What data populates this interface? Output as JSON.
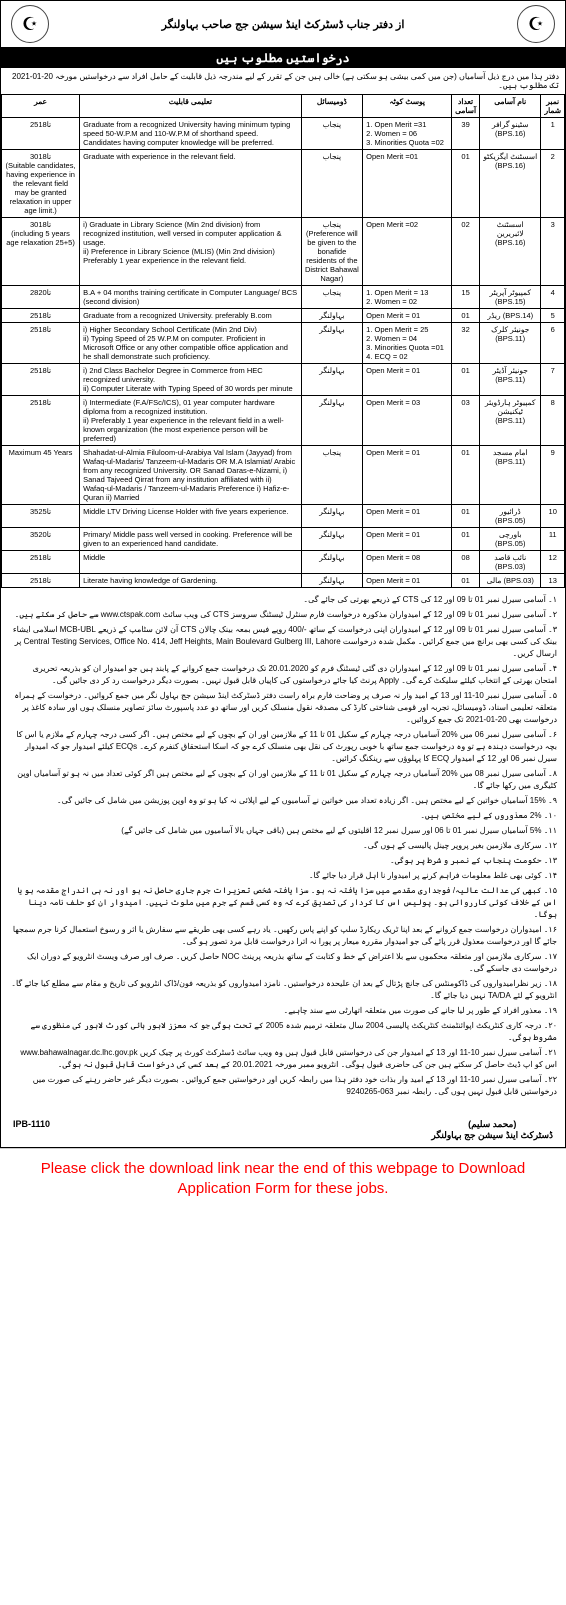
{
  "header": {
    "title_line": "از دفتر جناب ڈسٹرکٹ اینڈ سیشن جج صاحب بہاولنگر",
    "banner": "درخواستیں مطلوب ہیں",
    "intro": "دفتر ہذا میں درج ذیل آسامیاں (جن میں کمی بیشی ہو سکتی ہے) خالی ہیں جن کے تقرر کے لیے مندرجہ ذیل قابلیت کے حامل افراد سے درخواستیں مورخہ 20-01-2021 تک مطلوب ہیں۔"
  },
  "columns": {
    "sr": "نمبر شمار",
    "post": "نام آسامی",
    "qty": "تعداد آسامی",
    "quota": "پوسٹ کوٹہ",
    "domicile": "ڈومیسائل",
    "qualification": "تعلیمی قابلیت",
    "age": "عمر"
  },
  "rows": [
    {
      "sr": "1",
      "post": "سٹینو گرافر\n(BPS.16)",
      "qty": "39",
      "quota": "1. Open Merit =31\n2. Women = 06\n3. Minorities Quota =02",
      "domicile": "پنجاب",
      "qual": "Graduate from a recognized University having minimum typing speed 50-W.P.M and 110-W.P.M of shorthand speed. Candidates having computer knowledge will be preferred.",
      "age": "25تا18"
    },
    {
      "sr": "2",
      "post": "اسسٹنٹ ایگزیکٹو\n(BPS.16)",
      "qty": "01",
      "quota": "Open Merit =01",
      "domicile": "پنجاب",
      "qual": "Graduate with experience in the relevant field.",
      "age": "30تا18\n(Suitable candidates, having experience in the relevant field may be granted relaxation in upper age limit.)"
    },
    {
      "sr": "3",
      "post": "اسسٹنٹ لائبریرین\n(BPS.16)",
      "qty": "02",
      "quota": "Open Merit =02",
      "domicile": "پنجاب\n(Preference will be given to the bonafide residents of the District Bahawal Nagar)",
      "qual": "i) Graduate in Library Science (Min 2nd division) from recognized institution, well versed in computer application & usage.\nii) Preference in Library Science (MLIS) (Min 2nd division) Preferably 1 year experience in the relevant field.",
      "age": "30تا18\n(including 5 years age relaxation 25+5)"
    },
    {
      "sr": "4",
      "post": "کمپیوٹر آپریٹر\n(BPS.15)",
      "qty": "15",
      "quota": "1. Open Merit = 13\n2. Women = 02",
      "domicile": "پنجاب",
      "qual": "B.A + 04 months training certificate in Computer Language/ BCS (second division)",
      "age": "28تا20"
    },
    {
      "sr": "5",
      "post": "ریڈر (BPS.14)",
      "qty": "01",
      "quota": "Open Merit = 01",
      "domicile": "بہاولنگر",
      "qual": "Graduate from a recognized University. preferably B.com",
      "age": "25تا18"
    },
    {
      "sr": "6",
      "post": "جونیئر کلرک\n(BPS.11)",
      "qty": "32",
      "quota": "1. Open Merit = 25\n2. Women = 04\n3. Minorities Quota =01\n4. ECQ = 02",
      "domicile": "بہاولنگر",
      "qual": "i) Higher Secondary School Certificate (Min 2nd Div)\nii) Typing Speed of 25 W.P.M on computer. Proficient in Microsoft Office or any other compatible office application and he shall demonstrate such proficiency.",
      "age": "25تا18"
    },
    {
      "sr": "7",
      "post": "جونیئر آڈیٹر\n(BPS.11)",
      "qty": "01",
      "quota": "Open Merit = 01",
      "domicile": "بہاولنگر",
      "qual": "i) 2nd Class Bachelor Degree in Commerce from HEC recognized university.\nii) Computer Literate with Typing Speed of 30 words per minute",
      "age": "25تا18"
    },
    {
      "sr": "8",
      "post": "کمپیوٹر ہارڈویئر ٹیکنیشن\n(BPS.11)",
      "qty": "03",
      "quota": "Open Merit = 03",
      "domicile": "بہاولنگر",
      "qual": "i) Intermediate (F.A/FSc/ICS), 01 year computer hardware diploma from a recognized institution.\nii) Preferably 1 year experience in the relevant field in a well-known organization (the most experience person will be preferred)",
      "age": "25تا18"
    },
    {
      "sr": "9",
      "post": "امام مسجد\n(BPS.11)",
      "qty": "01",
      "quota": "Open Merit = 01",
      "domicile": "پنجاب",
      "qual": "Shahadat-ul-Almia Filuloom-ul-Arabiya Val Islam (Jayyad) from Wafaq-ul-Madaris/ Tanzeem-ul-Madaris OR M.A Islamiat/ Arabic from any recognized University. OR Sanad Daras-e-Nizami, i) Sanad Tajveed Qirrat from any institution affiliated with ii) Wafaq-ul-Madaris / Tanzeem-ul-Madaris Preference i) Hafiz-e-Quran ii) Married",
      "age": "Maximum 45 Years"
    },
    {
      "sr": "10",
      "post": "ڈرائیور\n(BPS.05)",
      "qty": "01",
      "quota": "Open Merit = 01",
      "domicile": "بہاولنگر",
      "qual": "Middle LTV Driving License Holder with five years experience.",
      "age": "35تا25"
    },
    {
      "sr": "11",
      "post": "باورچی\n(BPS.05)",
      "qty": "01",
      "quota": "Open Merit = 01",
      "domicile": "بہاولنگر",
      "qual": "Primary/ Middle pass well versed in cooking. Preference will be given to an experienced hand candidate.",
      "age": "35تا20"
    },
    {
      "sr": "12",
      "post": "نائب قاصد\n(BPS.03)",
      "qty": "08",
      "quota": "Open Merit = 08",
      "domicile": "بہاولنگر",
      "qual": "Middle",
      "age": "25تا18"
    },
    {
      "sr": "13",
      "post": "مالی (BPS.03)",
      "qty": "01",
      "quota": "Open Merit = 01",
      "domicile": "بہاولنگر",
      "qual": "Literate having knowledge of Gardening.",
      "age": "25تا18"
    }
  ],
  "notes": [
    "۱۔ آسامی سیرل نمبر 01 تا 09 اور 12 کی CTS کے ذریعے بھرتی کی جائے گی۔",
    "۲۔ آسامی سیرل نمبر 01 تا 09 اور 12 کے امیدواران مذکورہ درخواست فارم سنٹرل ٹیسٹنگ سروسز CTS کی ویب سائٹ www.ctspak.com سے حاصل کر سکتے ہیں۔",
    "۳۔ آسامی سیرل نمبر 01 تا 09 اور 12 کے امیدواران اپنی درخواست کے ساتھ -/400 روپے فیس بمعہ بینک چالان CTS آن لائن سٹامپ کے ذریعے MCB-UBL اسلامی ایشاء بینک کی کسی بھی برانچ میں جمع کرائیں۔ مکمل شدہ درخواست Central Testing Services, Office No. 414, Jeff Heights, Main Boulevard Gulberg III, Lahore پر ارسال کریں۔",
    "۴۔ آسامی سیرل نمبر 01 تا 09 اور 12 کے امیدواران دی گئی ٹیسٹنگ فرم کو 20.01.2020 تک درخواست جمع کروانے کے پابند ہیں جو امیدوار ان کو بذریعہ تحریری امتحان بھرتی کے انتخاب کیلئے سلیکٹ کرے گی۔ Apply پرنٹ کیا جائے درخواستوں کی کاپیاں قابل قبول نہیں۔ بصورت دیگر درخواست رد کر دی جائیں گی۔",
    "۵۔ آسامی سیرل نمبر 10-11 اور 13 کے امید وار نہ صرف پر وضاحت فارم براہ راست دفتر ڈسٹرکٹ اینڈ سیشن جج بہاول نگر میں جمع کروائیں۔ درخواست کے ہمراہ متعلقہ تعلیمی اسناد، ڈومیسائل، تجربہ اور قومی شناختی کارڈ کی مصدقہ نقول منسلک کریں اور ساتھ دو عدد پاسپورٹ سائز تصاویر منسلک ہوں اور سادہ کاغذ پر درخواست بھی 20-01-2021 تک جمع کروائیں۔",
    "۶۔ آسامی سیرل نمبر 06 میں %20 آسامیاں درجہ چہارم کے سکیل 01 تا 11 کے ملازمین اور ان کے بچوں کے لیے مختص ہیں۔ اگر کسی درجہ چہارم کے ملازم یا اس کا بچہ درخواست دہندہ ہے تو وہ درخواست جمع ساتھ با خوبی رپورٹ کی نقل بھی منسلک کرے جو کہ اسکا استحقاق کنفرم کرے۔ ECQs کیلئے امیدوار جو کہ امیدوار سیرل نمبر 06 اور 12 کے امیدوار ECQ کا پہلوؤں سے رینکنگ کرائیں۔",
    "۸۔ آسامی سیرل نمبر 08 میں %20 آسامیاں درجہ چہارم کے سکیل 01 تا 11 کے ملازمین اور ان کے بچوں کے لیے مختص ہیں اگر کوئی تعداد میں نہ ہو تو آسامیاں اوپن کٹیگری میں رکھا جائے گا۔",
    "۹۔ %15 آسامیاں خواتین کے لیے مختص ہیں۔ اگر زیادہ تعداد میں خواتین نے آسامیوں کے لیے اپلائی نہ کیا ہو تو وہ اوپن پوزیشن میں شامل کی جائیں گی۔",
    "۱۰۔ %2 معذوروں کے لیے مختص ہیں۔",
    "۱۱۔ %5 آسامیاں سیرل نمبر 01 تا 06 اور سیرل نمبر 12 اقلیتوں کے لیے مختص ہیں (باقی جہاں بالا آسامیوں میں شامل کی جائیں گے)",
    "۱۲۔ سرکاری ملازمین بغیر پروپر چینل پالیسی کے ہوں گی۔",
    "۱۳۔ حکومت پنجاب کے نمبر و شرط پر ہوگی۔",
    "۱۴۔ کوئی بھی غلط معلومات فراہم کرنے پر امیدوار نا اہل قرار دیا جائے گا۔",
    "۱۵۔ کبھی کی عدالت عالیہ/ فوجداری مقدمے میں سزا یافتہ نہ ہو۔ سزا یافتہ شخص تعزیرات جرم جاری حاصل نہ ہو اور نہ ہی اندراج مقدمہ ہو یا اس کے خلاف کوئی کارروائی ہو۔ پولیس اس کا کردار کی تصدیق کرے کہ وہ کسی قسم کے جرم میں ملوث نہیں۔ امیدوار ان کو حلف نامہ دینا ہوگا۔",
    "۱۶۔ امیدواران درخواست جمع کروانے کے بعد اپنا ٹریک ریکارڈ سلپ کو اپنے پاس رکھیں۔ یاد رہے کسی بھی طریقے سے سفارش یا اثر و رسوخ استعمال کرنا جرم سمجھا جائے گا اور درخواست معذول قرر پائے گی جو امیدوار مقررہ میعار پر پورا نہ اترا درخواست قابل مرد تصور ہو گی۔",
    "۱۷۔ سرکاری ملازمین اور متعلقہ محکموں سے بلا اعتراض کے خط و کتابت کے ساتھ بذریعہ پرینٹ NOC حاصل کریں۔ صرف اور صرف ویسٹ انٹرویو کے دوران ایک درخواست دی جاسکے گی۔",
    "۱۸۔ زیر نظرامیدواروں کی ڈاکومنٹس کی جانچ پڑتال کے بعد ان علیحدہ درخواستیں۔ نامزد امیدواروں کو بذریعہ فون/ڈاک انٹرویو کی تاریخ و مقام سے مطلع کیا جائے گا۔ انٹرویو کے لئے TA/DA نہیں دیا جائے گا۔",
    "۱۹۔ معذور افراد کے طور پر لیا جانے کی صورت میں متعلقہ اتھارٹی سے سند چاہیے۔",
    "۲۰۔ درجہ کاری کنٹریکٹ اپوائنٹمنٹ کنٹریکٹ پالیسی 2004 سال متعلقہ ترمیم شدہ 2005 کے تحت ہوگی جو کہ معزز لاہور ہائی کورٹ لاہور کی منظوری سے مشروط ہوگی۔",
    "۲۱۔ آسامی سیرل نمبر 10-11 اور 13 کے امیدوار جن کی درخواستیں قابل قبول ہیں وہ ویب سائٹ ڈسٹرکٹ کورٹ پر چیک کریں www.bahawalnagar.dc.lhc.gov.pk اس کو اپ ڈیٹ حاصل کر سکتے ہیں جن کی حاضری قبول ہوگی۔ انٹرویو ممبر مورخہ 20.01.2021 کے بعد کسی کی درخواست قابل قبول نہ ہوگی۔",
    "۲۲۔ آسامی سیرل نمبر 10-11 اور 13 کے امید وار بذات خود دفتر ہذا میں رابطہ کریں اور درخواستیں جمع کروائیں۔ بصورت دیگر غیر حاضر رہنے کی صورت میں درخواستیں قابل قبول نہیں ہوں گی۔ رابطہ نمبر 063-9240265"
  ],
  "signature": {
    "name": "(محمد سلیم)",
    "designation": "ڈسٹرکٹ اینڈ سیشن جج بہاولنگر",
    "ipb": "IPB-1110"
  },
  "download": "Please click the download link near the end of this webpage to Download Application Form for these jobs."
}
